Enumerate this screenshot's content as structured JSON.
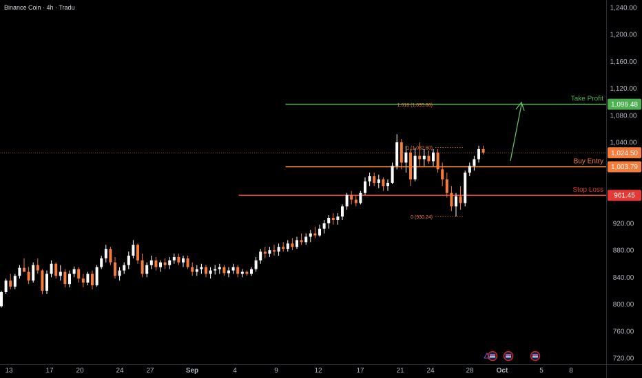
{
  "header": {
    "title": "Binance Coin · 4h · Tradu"
  },
  "chart_data": {
    "type": "candlestick",
    "y_axis": {
      "ticks": [
        "1,240.00",
        "1,200.00",
        "1,160.00",
        "1,120.00",
        "1,080.00",
        "1,040.00",
        "920.00",
        "880.00",
        "840.00",
        "800.00",
        "760.00",
        "720.00"
      ],
      "tick_values": [
        1240,
        1200,
        1160,
        1120,
        1080,
        1040,
        920,
        880,
        840,
        800,
        760,
        720
      ],
      "ylim": [
        711,
        1251
      ]
    },
    "x_axis": {
      "labels": [
        "13",
        "17",
        "20",
        "24",
        "27",
        "Sep",
        "4",
        "9",
        "12",
        "17",
        "21",
        "24",
        "28",
        "Oct",
        "5",
        "8"
      ],
      "xlim": [
        -3.2,
        93.3
      ]
    },
    "price_tags": [
      {
        "name": "take-profit",
        "value": "1,096.48",
        "color": "#4caf50"
      },
      {
        "name": "current-price",
        "value": "1,024.50",
        "color": "#f57c3a"
      },
      {
        "name": "buy-entry",
        "value": "1,003.79",
        "color": "#f57c3a"
      },
      {
        "name": "stop-loss",
        "value": "961.45",
        "color": "#e53935"
      }
    ],
    "levels": [
      {
        "name": "Take Profit",
        "price": 1096.48,
        "color": "#4caf50",
        "from": 62.5
      },
      {
        "name": "Buy Entry",
        "price": 1003.79,
        "color": "#f57c3a",
        "from": 62.5
      },
      {
        "name": "Stop Loss",
        "price": 961.45,
        "color": "#e53935",
        "from": 52.2
      }
    ],
    "current_price": 1024.5,
    "fib_labels": [
      {
        "text": "1.618 (1,095.86)",
        "price": 1095.9
      },
      {
        "text": "1 (1,032.60)",
        "price": 1032.6
      },
      {
        "text": "0 (930.24)",
        "price": 930.2
      }
    ],
    "colors": {
      "up": "#ffffff",
      "down": "#f57c3a",
      "background": "#000000",
      "axis_text": "#b2b5be"
    },
    "candles": [
      [
        0,
        797,
        820,
        795,
        818
      ],
      [
        1,
        818,
        838,
        815,
        835
      ],
      [
        2,
        835,
        845,
        822,
        826
      ],
      [
        3,
        826,
        845,
        822,
        842
      ],
      [
        4,
        842,
        858,
        838,
        854
      ],
      [
        5,
        854,
        868,
        850,
        848
      ],
      [
        6,
        848,
        855,
        830,
        835
      ],
      [
        7,
        835,
        862,
        832,
        858
      ],
      [
        8,
        858,
        868,
        845,
        850
      ],
      [
        9,
        850,
        852,
        815,
        820
      ],
      [
        10,
        820,
        850,
        815,
        845
      ],
      [
        11,
        845,
        865,
        840,
        860
      ],
      [
        12,
        860,
        862,
        838,
        842
      ],
      [
        13,
        842,
        858,
        835,
        848
      ],
      [
        14,
        848,
        852,
        825,
        830
      ],
      [
        15,
        830,
        850,
        825,
        845
      ],
      [
        16,
        845,
        856,
        840,
        852
      ],
      [
        17,
        852,
        855,
        832,
        838
      ],
      [
        18,
        838,
        845,
        825,
        832
      ],
      [
        19,
        832,
        848,
        828,
        845
      ],
      [
        20,
        845,
        850,
        822,
        828
      ],
      [
        21,
        828,
        858,
        826,
        855
      ],
      [
        22,
        855,
        872,
        852,
        868
      ],
      [
        23,
        868,
        888,
        862,
        882
      ],
      [
        24,
        882,
        885,
        858,
        862
      ],
      [
        25,
        862,
        870,
        838,
        842
      ],
      [
        26,
        842,
        855,
        835,
        850
      ],
      [
        27,
        850,
        862,
        845,
        858
      ],
      [
        28,
        858,
        878,
        852,
        872
      ],
      [
        29,
        872,
        895,
        868,
        888
      ],
      [
        30,
        888,
        890,
        860,
        865
      ],
      [
        31,
        865,
        875,
        840,
        845
      ],
      [
        32,
        845,
        862,
        840,
        858
      ],
      [
        33,
        858,
        872,
        852,
        865
      ],
      [
        34,
        865,
        870,
        850,
        855
      ],
      [
        35,
        855,
        865,
        848,
        862
      ],
      [
        36,
        862,
        868,
        852,
        858
      ],
      [
        37,
        858,
        870,
        852,
        865
      ],
      [
        38,
        865,
        875,
        860,
        870
      ],
      [
        39,
        870,
        875,
        858,
        862
      ],
      [
        40,
        862,
        872,
        855,
        868
      ],
      [
        41,
        868,
        872,
        852,
        855
      ],
      [
        42,
        855,
        862,
        842,
        848
      ],
      [
        43,
        848,
        858,
        842,
        852
      ],
      [
        44,
        852,
        860,
        845,
        855
      ],
      [
        45,
        855,
        858,
        840,
        845
      ],
      [
        46,
        845,
        855,
        838,
        850
      ],
      [
        47,
        850,
        858,
        844,
        852
      ],
      [
        48,
        852,
        860,
        845,
        855
      ],
      [
        49,
        855,
        858,
        842,
        846
      ],
      [
        50,
        846,
        855,
        840,
        850
      ],
      [
        51,
        850,
        860,
        845,
        855
      ],
      [
        52,
        855,
        858,
        840,
        845
      ],
      [
        53,
        845,
        852,
        840,
        848
      ],
      [
        54,
        848,
        850,
        842,
        845
      ],
      [
        55,
        845,
        855,
        842,
        852
      ],
      [
        56,
        852,
        870,
        848,
        865
      ],
      [
        57,
        865,
        882,
        860,
        878
      ],
      [
        58,
        878,
        885,
        868,
        875
      ],
      [
        59,
        875,
        885,
        870,
        880
      ],
      [
        60,
        880,
        888,
        872,
        878
      ],
      [
        61,
        878,
        890,
        872,
        885
      ],
      [
        62,
        885,
        892,
        878,
        882
      ],
      [
        63,
        882,
        895,
        878,
        890
      ],
      [
        64,
        890,
        898,
        880,
        885
      ],
      [
        65,
        885,
        900,
        882,
        895
      ],
      [
        66,
        895,
        905,
        888,
        892
      ],
      [
        67,
        892,
        905,
        888,
        900
      ],
      [
        68,
        900,
        910,
        892,
        905
      ],
      [
        69,
        905,
        915,
        898,
        902
      ],
      [
        70,
        902,
        918,
        900,
        912
      ],
      [
        71,
        912,
        925,
        905,
        920
      ],
      [
        72,
        920,
        932,
        912,
        928
      ],
      [
        73,
        928,
        935,
        918,
        925
      ],
      [
        74,
        925,
        935,
        918,
        930
      ],
      [
        75,
        930,
        948,
        925,
        945
      ],
      [
        76,
        945,
        965,
        940,
        962
      ],
      [
        77,
        962,
        968,
        948,
        955
      ],
      [
        78,
        955,
        962,
        945,
        950
      ],
      [
        79,
        950,
        968,
        948,
        965
      ],
      [
        80,
        965,
        988,
        962,
        982
      ],
      [
        81,
        982,
        995,
        975,
        990
      ],
      [
        82,
        990,
        995,
        975,
        980
      ],
      [
        83,
        980,
        992,
        972,
        985
      ],
      [
        84,
        985,
        988,
        968,
        975
      ],
      [
        85,
        975,
        985,
        968,
        980
      ],
      [
        86,
        980,
        1010,
        978,
        1005
      ],
      [
        87,
        1005,
        1052,
        1000,
        1040
      ],
      [
        88,
        1040,
        1045,
        1000,
        1010
      ],
      [
        89,
        1010,
        1035,
        995,
        1025
      ],
      [
        90,
        1025,
        1030,
        975,
        985
      ],
      [
        91,
        985,
        1032,
        982,
        1020
      ],
      [
        92,
        1020,
        1040,
        1005,
        1015
      ],
      [
        93,
        1015,
        1030,
        1005,
        1020
      ],
      [
        94,
        1020,
        1028,
        1008,
        1012
      ],
      [
        95,
        1012,
        1030,
        1005,
        1025
      ],
      [
        96,
        1025,
        1030,
        995,
        1000
      ],
      [
        97,
        1000,
        1010,
        975,
        985
      ],
      [
        98,
        985,
        995,
        958,
        965
      ],
      [
        99,
        965,
        975,
        938,
        945
      ],
      [
        100,
        945,
        965,
        930,
        960
      ],
      [
        101,
        960,
        975,
        940,
        950
      ],
      [
        102,
        950,
        998,
        945,
        995
      ],
      [
        103,
        995,
        1010,
        990,
        1005
      ],
      [
        104,
        1005,
        1020,
        998,
        1015
      ],
      [
        105,
        1015,
        1035,
        1010,
        1030
      ],
      [
        106,
        1030,
        1035,
        1022,
        1024.5
      ]
    ]
  },
  "event_icons": [
    {
      "name": "flag-icon"
    },
    {
      "name": "flag-icon"
    },
    {
      "name": "flag-icon"
    }
  ]
}
